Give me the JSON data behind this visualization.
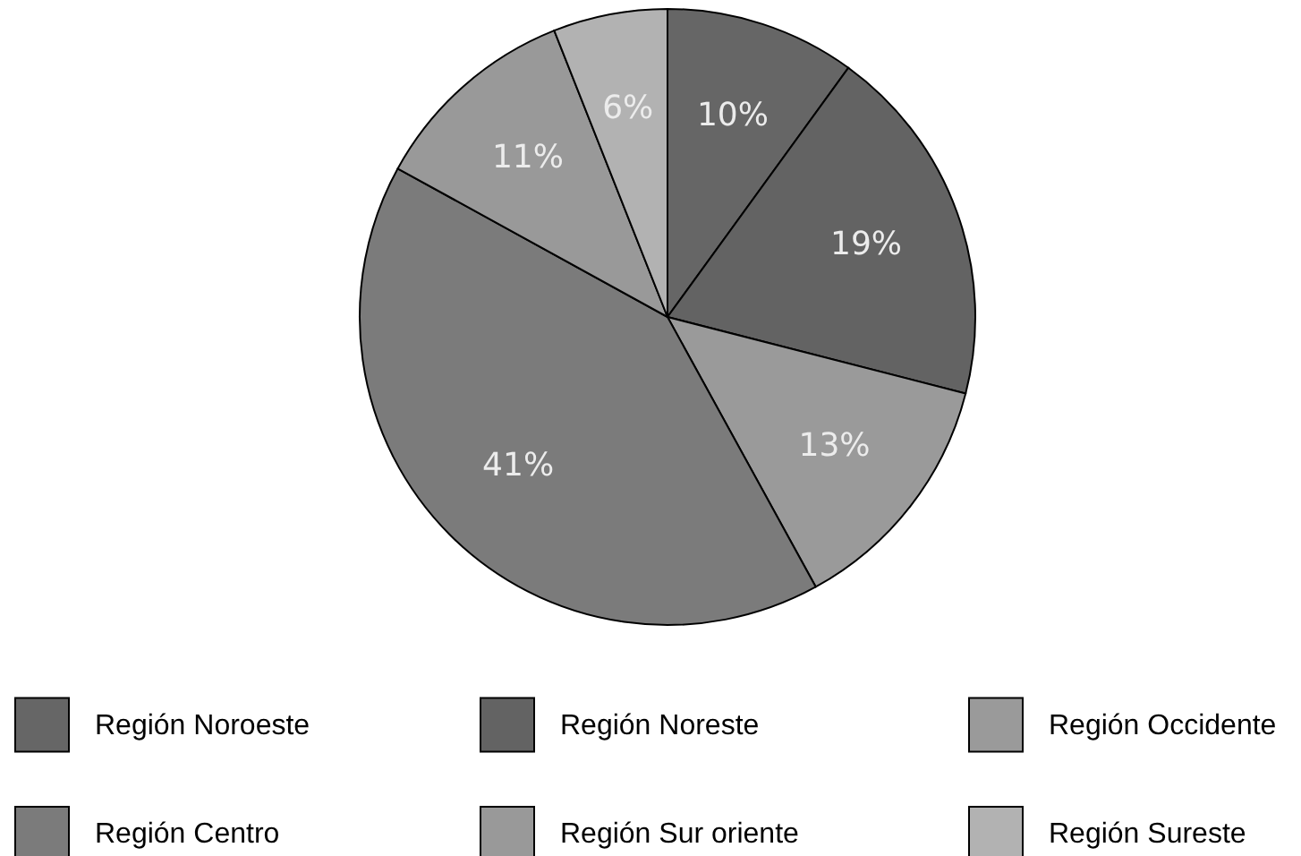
{
  "chart_data": {
    "type": "pie",
    "categories": [
      "Región Noroeste",
      "Región Noreste",
      "Región Occidente",
      "Región Centro",
      "Región Sur oriente",
      "Región Sureste"
    ],
    "values": [
      10,
      19,
      13,
      41,
      11,
      6
    ],
    "colors": [
      "#666666",
      "#636363",
      "#9a9a9a",
      "#7b7b7b",
      "#999999",
      "#b2b2b2"
    ],
    "value_labels": [
      "10%",
      "19%",
      "13%",
      "41%",
      "11%",
      "6%"
    ],
    "legend": "bottom"
  }
}
